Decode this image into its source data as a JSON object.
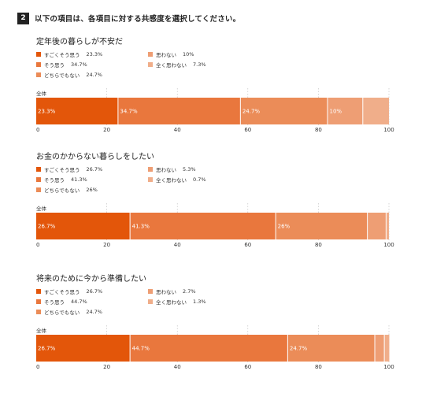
{
  "header": {
    "number": "2",
    "question": "以下の項目は、各項目に対する共感度を選択してください。"
  },
  "colors": {
    "strongly_agree": "#E3560A",
    "agree": "#E9773D",
    "neutral": "#EB8C58",
    "disagree": "#EE9E74",
    "strongly_disagree": "#F0AE8A",
    "grid": "#bbbbbb"
  },
  "legend_labels": [
    "すごくそう思う",
    "そう思う",
    "どちらでもない",
    "思わない",
    "全く思わない"
  ],
  "chart_data": [
    {
      "type": "bar",
      "orientation": "horizontal",
      "stacked": true,
      "title": "定年後の暮らしが不安だ",
      "categories": [
        "全体"
      ],
      "series": [
        {
          "name": "すごくそう思う",
          "value": 23.3,
          "display": "23.3%",
          "value_label": "23.3%",
          "color_key": "strongly_agree"
        },
        {
          "name": "そう思う",
          "value": 34.7,
          "display": "34.7%",
          "value_label": "34.7%",
          "color_key": "agree"
        },
        {
          "name": "どちらでもない",
          "value": 24.7,
          "display": "24.7%",
          "value_label": "24.7%",
          "color_key": "neutral"
        },
        {
          "name": "思わない",
          "value": 10,
          "display": "10%",
          "value_label": "10%",
          "color_key": "disagree"
        },
        {
          "name": "全く思わない",
          "value": 7.3,
          "display": "7.3%",
          "value_label": "",
          "color_key": "strongly_disagree"
        }
      ],
      "xlim": [
        0,
        100
      ],
      "xticks": [
        0,
        20,
        40,
        60,
        80,
        100
      ],
      "grid": true,
      "legend": "top-left"
    },
    {
      "type": "bar",
      "orientation": "horizontal",
      "stacked": true,
      "title": "お金のかからない暮らしをしたい",
      "categories": [
        "全体"
      ],
      "series": [
        {
          "name": "すごくそう思う",
          "value": 26.7,
          "display": "26.7%",
          "value_label": "26.7%",
          "color_key": "strongly_agree"
        },
        {
          "name": "そう思う",
          "value": 41.3,
          "display": "41.3%",
          "value_label": "41.3%",
          "color_key": "agree"
        },
        {
          "name": "どちらでもない",
          "value": 26,
          "display": "26%",
          "value_label": "26%",
          "color_key": "neutral"
        },
        {
          "name": "思わない",
          "value": 5.3,
          "display": "5.3%",
          "value_label": "",
          "color_key": "disagree"
        },
        {
          "name": "全く思わない",
          "value": 0.7,
          "display": "0.7%",
          "value_label": "",
          "color_key": "strongly_disagree"
        }
      ],
      "xlim": [
        0,
        100
      ],
      "xticks": [
        0,
        20,
        40,
        60,
        80,
        100
      ],
      "grid": true,
      "legend": "top-left"
    },
    {
      "type": "bar",
      "orientation": "horizontal",
      "stacked": true,
      "title": "将来のために今から準備したい",
      "categories": [
        "全体"
      ],
      "series": [
        {
          "name": "すごくそう思う",
          "value": 26.7,
          "display": "26.7%",
          "value_label": "26.7%",
          "color_key": "strongly_agree"
        },
        {
          "name": "そう思う",
          "value": 44.7,
          "display": "44.7%",
          "value_label": "44.7%",
          "color_key": "agree"
        },
        {
          "name": "どちらでもない",
          "value": 24.7,
          "display": "24.7%",
          "value_label": "24.7%",
          "color_key": "neutral"
        },
        {
          "name": "思わない",
          "value": 2.7,
          "display": "2.7%",
          "value_label": "",
          "color_key": "disagree"
        },
        {
          "name": "全く思わない",
          "value": 1.3,
          "display": "1.3%",
          "value_label": "",
          "color_key": "strongly_disagree"
        }
      ],
      "xlim": [
        0,
        100
      ],
      "xticks": [
        0,
        20,
        40,
        60,
        80,
        100
      ],
      "grid": true,
      "legend": "top-left"
    }
  ]
}
